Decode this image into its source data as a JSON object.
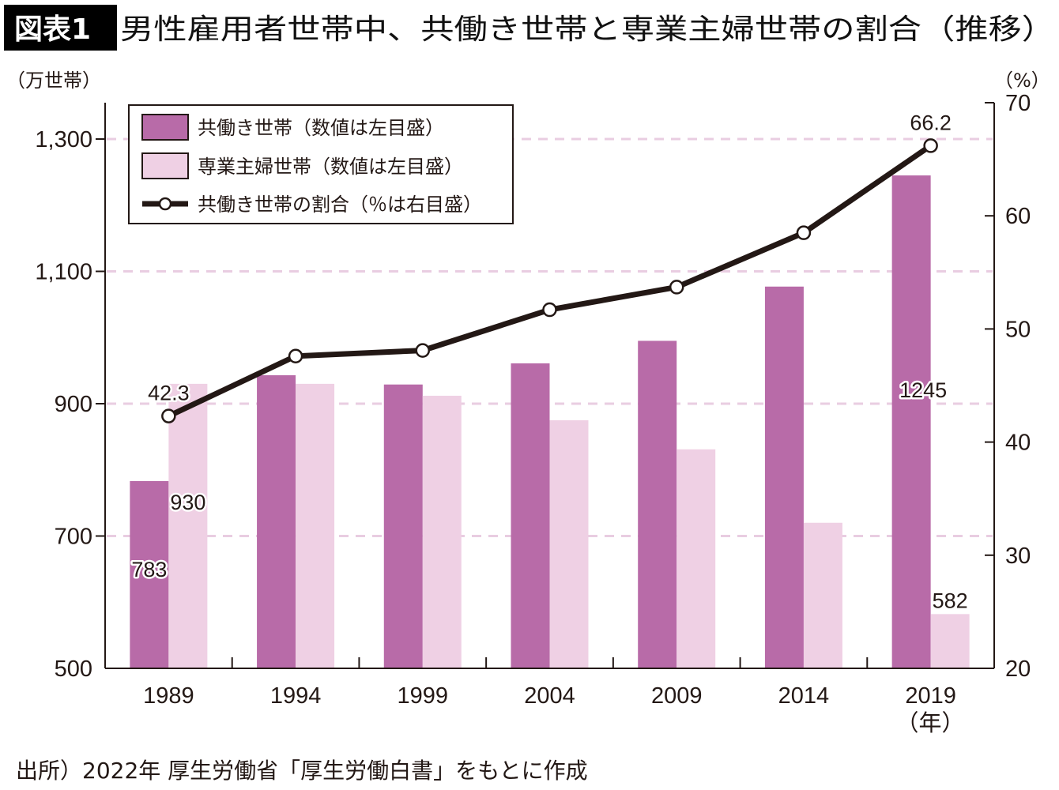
{
  "header": {
    "badge": "図表1",
    "title": "男性雇用者世帯中、共働き世帯と専業主婦世帯の割合（推移）"
  },
  "axes": {
    "left_unit": "（万世帯）",
    "right_unit": "（%）",
    "x_unit": "（年）"
  },
  "legend": {
    "items": [
      {
        "label": "共働き世帯（数値は左目盛）",
        "type": "bar-dual"
      },
      {
        "label": "専業主婦世帯（数値は左目盛）",
        "type": "bar-house"
      },
      {
        "label": "共働き世帯の割合（％は右目盛）",
        "type": "line"
      }
    ]
  },
  "source": "出所）2022年 厚生労働省「厚生労働白書」をもとに作成",
  "colors": {
    "dual_income": "#b86ba8",
    "housewife": "#efd0e4",
    "line": "#231815",
    "grid": "#e9cde1"
  },
  "chart_data": {
    "type": "bar+line",
    "title": "男性雇用者世帯中、共働き世帯と専業主婦世帯の割合（推移）",
    "categories": [
      "1989",
      "1994",
      "1999",
      "2004",
      "2009",
      "2014",
      "2019"
    ],
    "xlabel": "（年）",
    "ylabel_left": "（万世帯）",
    "ylabel_right": "（%）",
    "ylim_left": [
      500,
      1350
    ],
    "yticks_left": [
      500,
      700,
      900,
      1100,
      1300
    ],
    "yticks_left_labels": [
      "500",
      "700",
      "900",
      "1,100",
      "1,300"
    ],
    "ylim_right": [
      20,
      70
    ],
    "yticks_right": [
      20,
      30,
      40,
      50,
      60,
      70
    ],
    "grid": "dashed horizontal at left-axis ticks 700, 900, 1100, 1300",
    "legend_position": "top-left",
    "series": [
      {
        "name": "共働き世帯（数値は左目盛）",
        "axis": "left",
        "kind": "bar",
        "values": [
          783,
          943,
          929,
          961,
          995,
          1077,
          1245
        ]
      },
      {
        "name": "専業主婦世帯（数値は左目盛）",
        "axis": "left",
        "kind": "bar",
        "values": [
          930,
          930,
          912,
          875,
          831,
          720,
          582
        ]
      },
      {
        "name": "共働き世帯の割合（％は右目盛）",
        "axis": "right",
        "kind": "line",
        "values": [
          42.3,
          47.6,
          48.1,
          51.7,
          53.7,
          58.5,
          66.2
        ]
      }
    ],
    "annotations": [
      {
        "series": 0,
        "index": 0,
        "text": "783"
      },
      {
        "series": 1,
        "index": 0,
        "text": "930"
      },
      {
        "series": 2,
        "index": 0,
        "text": "42.3"
      },
      {
        "series": 0,
        "index": 6,
        "text": "1245"
      },
      {
        "series": 1,
        "index": 6,
        "text": "582"
      },
      {
        "series": 2,
        "index": 6,
        "text": "66.2"
      }
    ]
  }
}
